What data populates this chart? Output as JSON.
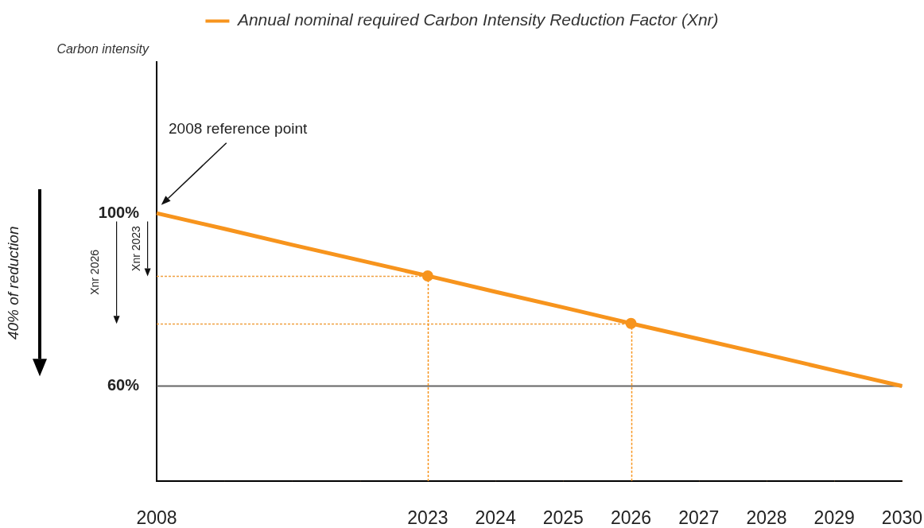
{
  "chart_data": {
    "type": "line",
    "legend": "top",
    "ylabel": "Carbon intensity",
    "categories": [
      "2008",
      null,
      null,
      null,
      "2023",
      "2024",
      "2025",
      "2026",
      "2027",
      "2028",
      "2029",
      "2030"
    ],
    "series": [
      {
        "name": "Annual nominal required Carbon Intensity Reduction Factor (Xnr)",
        "color": "#f7941d",
        "values": [
          100,
          96.4,
          92.7,
          89.1,
          85.5,
          81.8,
          78.2,
          74.5,
          70.9,
          67.3,
          63.6,
          60
        ],
        "marker": "none"
      },
      {
        "type": "lollipop",
        "color": "#f7941d",
        "values": [
          null,
          null,
          null,
          null,
          85.5,
          null,
          null,
          74.5,
          null,
          null,
          null,
          null
        ],
        "marker": "circle",
        "line_style": "dotted"
      }
    ],
    "ylim": [
      38,
      135
    ],
    "yticks": [
      {
        "value": 100,
        "label": "100%"
      },
      {
        "value": 60,
        "label": "60%"
      }
    ],
    "grid": false,
    "ref_lines": [
      {
        "axis": "y",
        "value": 60,
        "color": "#666666",
        "line_style": "solid"
      },
      {
        "axis": "y",
        "value": 85.5,
        "color": "#f0a040",
        "line_style": "dotted"
      },
      {
        "axis": "y",
        "value": 74.5,
        "color": "#f0a040",
        "line_style": "dotted"
      }
    ],
    "annotations": [
      "2008 reference point",
      "40% of reduction",
      "Xnr 2026",
      "Xnr 2023"
    ]
  }
}
